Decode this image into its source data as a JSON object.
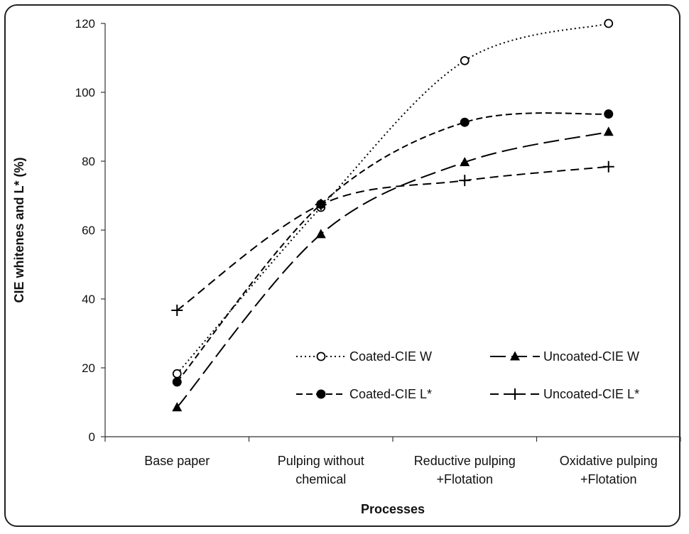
{
  "chart_data": {
    "type": "line",
    "xlabel": "Processes",
    "ylabel": "CIE whitenes and L* (%)",
    "categories": [
      [
        "Base paper"
      ],
      [
        "Pulping without",
        "chemical"
      ],
      [
        "Reductive pulping",
        "+Flotation"
      ],
      [
        "Oxidative pulping",
        "+Flotation"
      ]
    ],
    "ylim": [
      0,
      120
    ],
    "yticks": [
      0,
      20,
      40,
      60,
      80,
      100,
      120
    ],
    "grid": false,
    "legend_position": "lower-right",
    "series": [
      {
        "name": "Coated-CIE W",
        "values": [
          18.3,
          66.6,
          109.2,
          120.0
        ],
        "dash": "2,4",
        "marker": "open-circle",
        "color": "#000000"
      },
      {
        "name": "Uncoated-CIE W",
        "values": [
          8.5,
          58.8,
          79.7,
          88.5
        ],
        "dash": "22,8",
        "marker": "triangle",
        "color": "#000000"
      },
      {
        "name": "Coated-CIE L*",
        "values": [
          15.9,
          67.5,
          91.3,
          93.7
        ],
        "dash": "9,5",
        "marker": "filled-circle",
        "color": "#000000"
      },
      {
        "name": "Uncoated-CIE L*",
        "values": [
          36.7,
          67.4,
          74.4,
          78.4
        ],
        "dash": "12,7",
        "marker": "plus",
        "color": "#000000"
      }
    ]
  }
}
